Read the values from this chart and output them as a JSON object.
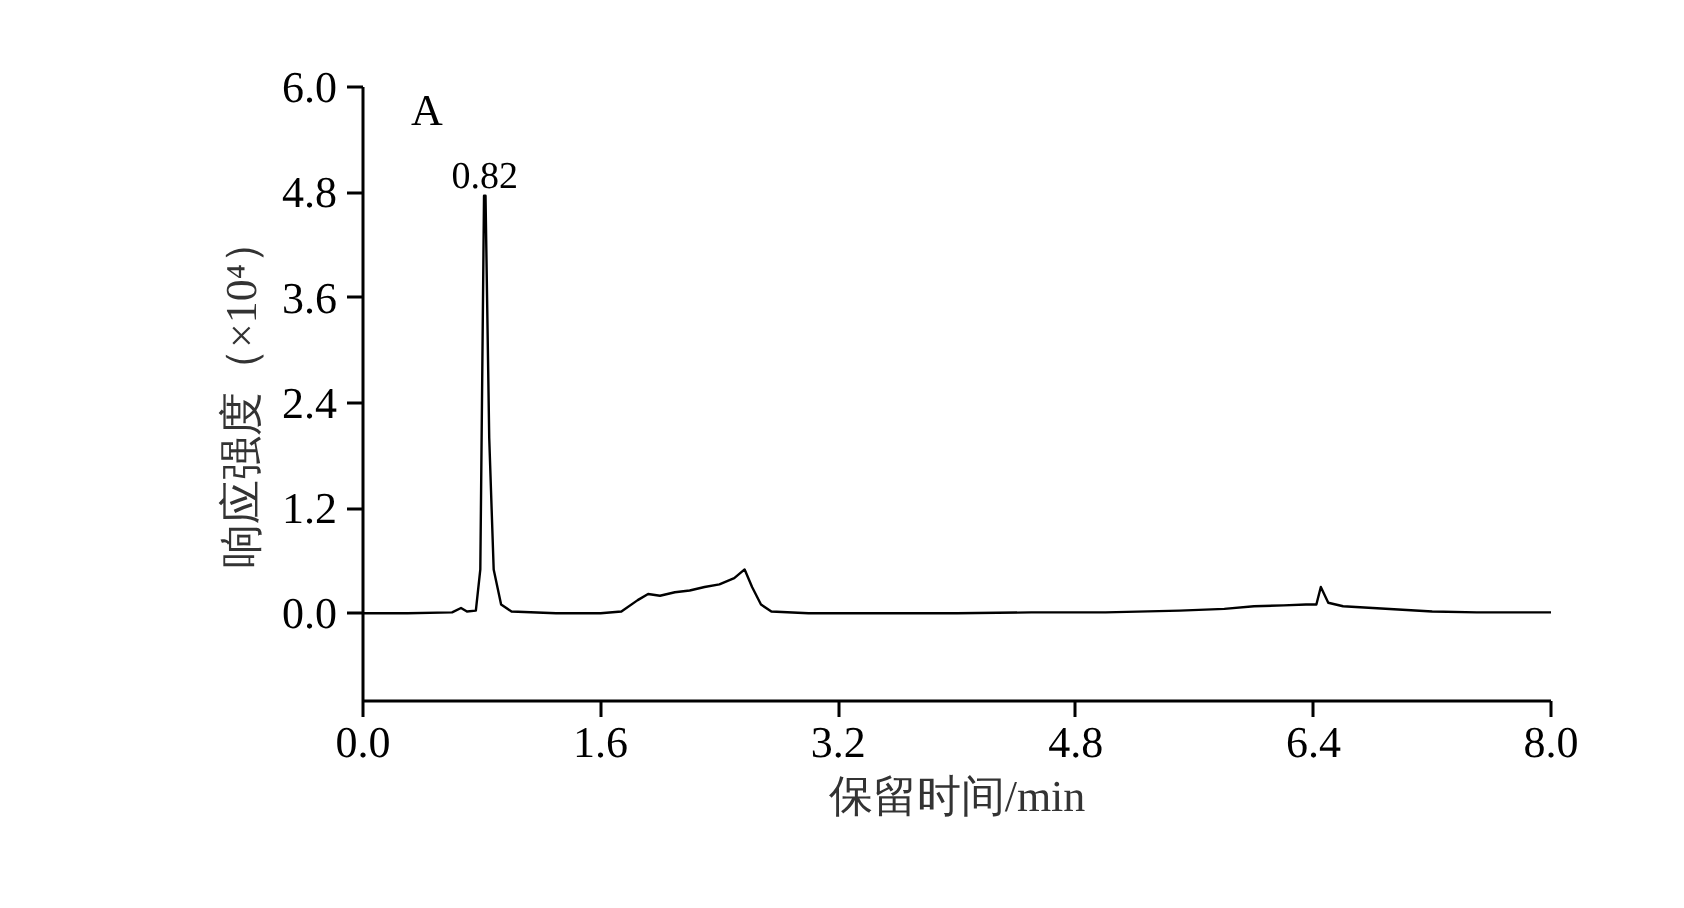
{
  "chart_data": {
    "type": "line",
    "xlabel": "保留时间/min",
    "ylabel": "响应强度（×10⁴）",
    "annotations": [
      "A",
      {
        "text": "0.82",
        "x": 0.82,
        "y": 4.76
      }
    ],
    "x": [
      0,
      0.3,
      0.6,
      0.66,
      0.7,
      0.76,
      0.79,
      0.815,
      0.825,
      0.85,
      0.88,
      0.93,
      1.0,
      1.3,
      1.6,
      1.74,
      1.85,
      1.92,
      2.0,
      2.1,
      2.2,
      2.3,
      2.4,
      2.5,
      2.57,
      2.62,
      2.68,
      2.75,
      3.0,
      3.5,
      4.0,
      4.5,
      5.0,
      5.5,
      5.8,
      6.0,
      6.2,
      6.35,
      6.42,
      6.45,
      6.5,
      6.6,
      6.8,
      7.0,
      7.2,
      7.5,
      8.0
    ],
    "series": [
      {
        "color": "#000000",
        "values": [
          0,
          0,
          0.01,
          0.06,
          0.02,
          0.03,
          0.5,
          4.76,
          4.76,
          2.0,
          0.5,
          0.1,
          0.02,
          0.0,
          0.0,
          0.02,
          0.15,
          0.22,
          0.2,
          0.24,
          0.26,
          0.3,
          0.33,
          0.4,
          0.5,
          0.3,
          0.1,
          0.02,
          0,
          0,
          0,
          0.01,
          0.01,
          0.03,
          0.05,
          0.08,
          0.09,
          0.1,
          0.1,
          0.3,
          0.12,
          0.08,
          0.06,
          0.04,
          0.02,
          0.01,
          0.01
        ]
      }
    ],
    "xlim": [
      0,
      8.0
    ],
    "xticks": [
      {
        "value": 0,
        "label": "0.0"
      },
      1.6,
      3.2,
      4.8,
      6.4,
      {
        "value": 8,
        "label": "8.0"
      }
    ],
    "ylim": [
      -1.0,
      6.0
    ],
    "yticks": [
      {
        "value": 0,
        "label": "0.0"
      },
      1.2,
      2.4,
      3.6,
      4.8,
      {
        "value": 6,
        "label": "6.0"
      }
    ],
    "grid": false,
    "marker": "none",
    "line_style": "solid"
  }
}
